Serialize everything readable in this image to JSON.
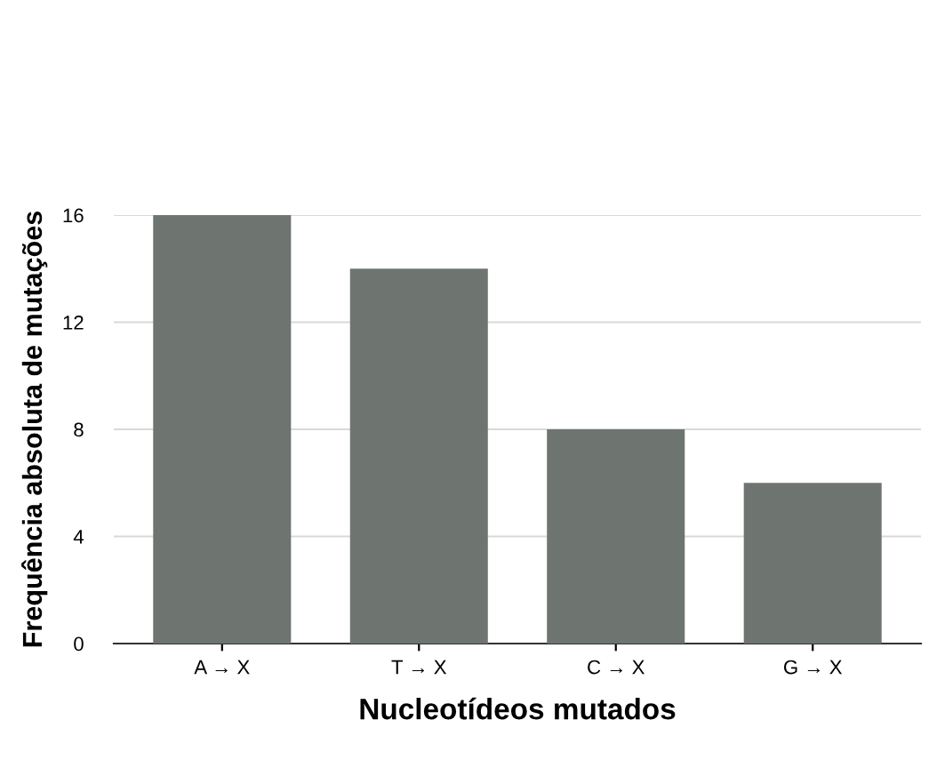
{
  "chart_data": {
    "type": "bar",
    "xlabel": "Nucleotídeos mutados",
    "ylabel": "Frequência absoluta de mutações",
    "categories": [
      "A → X",
      "T → X",
      "C → X",
      "G → X"
    ],
    "values": [
      16,
      14,
      8,
      6
    ],
    "color": "#6e7470",
    "ylim": [
      0,
      16
    ],
    "yticks": [
      0,
      4,
      8,
      12,
      16
    ],
    "grid": "y",
    "legend": false
  }
}
